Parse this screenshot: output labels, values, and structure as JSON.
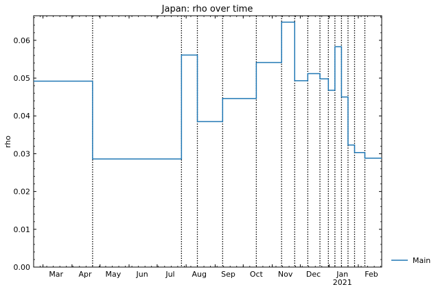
{
  "chart_data": {
    "type": "line",
    "title": "Japan: rho over time",
    "xlabel": "",
    "ylabel": "rho",
    "x_range": [
      "2020-02-20",
      "2021-02-26"
    ],
    "ylim": [
      0,
      0.0665
    ],
    "y_ticks": [
      0.0,
      0.01,
      0.02,
      0.03,
      0.04,
      0.05,
      0.06
    ],
    "y_tick_labels": [
      "0.00",
      "0.01",
      "0.02",
      "0.03",
      "0.04",
      "0.05",
      "0.06"
    ],
    "x_ticks": [
      {
        "date": "2020-03-01",
        "label": "Mar"
      },
      {
        "date": "2020-04-01",
        "label": "Apr"
      },
      {
        "date": "2020-05-01",
        "label": "May"
      },
      {
        "date": "2020-06-01",
        "label": "Jun"
      },
      {
        "date": "2020-07-01",
        "label": "Jul"
      },
      {
        "date": "2020-08-01",
        "label": "Aug"
      },
      {
        "date": "2020-09-01",
        "label": "Sep"
      },
      {
        "date": "2020-10-01",
        "label": "Oct"
      },
      {
        "date": "2020-11-01",
        "label": "Nov"
      },
      {
        "date": "2020-12-01",
        "label": "Dec"
      },
      {
        "date": "2021-01-01",
        "label": "Jan"
      },
      {
        "date": "2021-02-01",
        "label": "Feb"
      }
    ],
    "year_label": {
      "date": "2021-01-01",
      "label": "2021"
    },
    "grid": false,
    "legend": {
      "placement": "right",
      "entries": [
        "Main"
      ]
    },
    "series": [
      {
        "name": "Main",
        "color": "#1f77b4",
        "step": "post",
        "points": [
          {
            "x": "2020-02-20",
            "y": 0.0492
          },
          {
            "x": "2020-04-23",
            "y": 0.0286
          },
          {
            "x": "2020-07-27",
            "y": 0.0561
          },
          {
            "x": "2020-08-13",
            "y": 0.0385
          },
          {
            "x": "2020-09-09",
            "y": 0.0446
          },
          {
            "x": "2020-10-15",
            "y": 0.0541
          },
          {
            "x": "2020-11-11",
            "y": 0.0648
          },
          {
            "x": "2020-11-25",
            "y": 0.0493
          },
          {
            "x": "2020-12-09",
            "y": 0.0512
          },
          {
            "x": "2020-12-22",
            "y": 0.0498
          },
          {
            "x": "2020-12-31",
            "y": 0.0468
          },
          {
            "x": "2021-01-07",
            "y": 0.0583
          },
          {
            "x": "2021-01-14",
            "y": 0.045
          },
          {
            "x": "2021-01-21",
            "y": 0.0323
          },
          {
            "x": "2021-01-28",
            "y": 0.0303
          },
          {
            "x": "2021-02-08",
            "y": 0.0288
          }
        ]
      }
    ],
    "vlines": [
      "2020-04-23",
      "2020-07-27",
      "2020-08-13",
      "2020-09-09",
      "2020-10-15",
      "2020-11-11",
      "2020-11-25",
      "2020-12-09",
      "2020-12-22",
      "2020-12-31",
      "2021-01-07",
      "2021-01-14",
      "2021-01-21",
      "2021-01-28",
      "2021-02-08"
    ]
  }
}
